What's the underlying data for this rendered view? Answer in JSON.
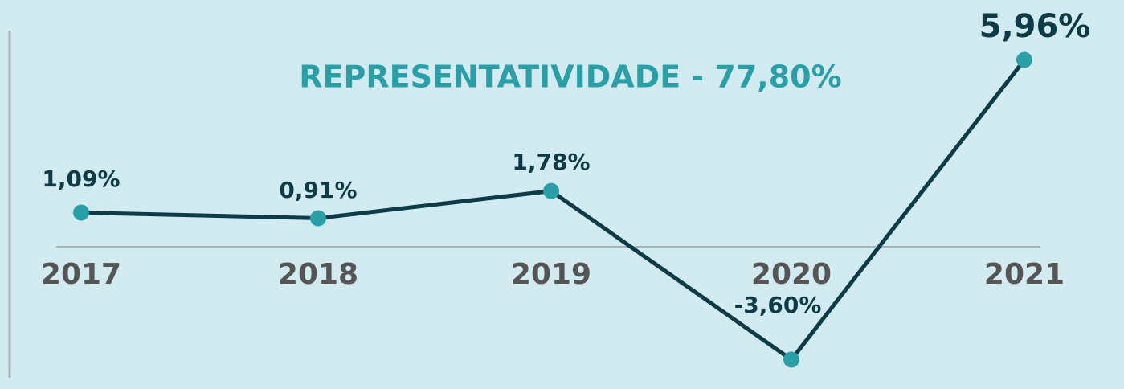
{
  "chart_data": {
    "type": "line",
    "title": "REPRESENTATIVIDADE - 77,80%",
    "categories": [
      "2017",
      "2018",
      "2019",
      "2020",
      "2021"
    ],
    "series": [
      {
        "name": null,
        "color": "#0d3b47",
        "marker_color": "#2a9fa8",
        "values": [
          1.09,
          0.91,
          1.78,
          -3.6,
          5.96
        ],
        "value_labels": [
          "1,09%",
          "0,91%",
          "1,78%",
          "-3,60%",
          "5,96%"
        ]
      }
    ],
    "ylim": [
      -4,
      7
    ]
  }
}
